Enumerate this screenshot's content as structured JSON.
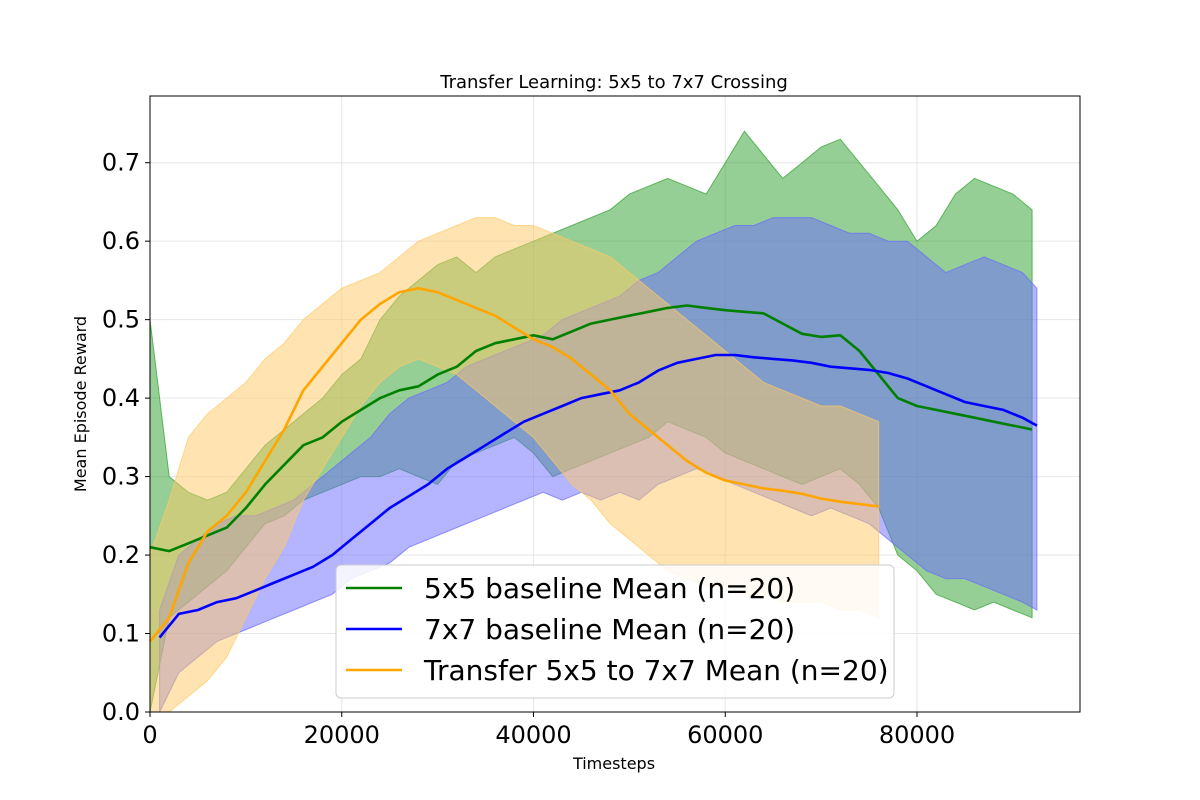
{
  "chart_data": {
    "type": "line",
    "title": "Transfer Learning: 5x5 to 7x7 Crossing",
    "xlabel": "Timesteps",
    "ylabel": "Mean Episode Reward",
    "xlim": [
      0,
      97000
    ],
    "ylim": [
      0,
      0.785
    ],
    "xticks": [
      0,
      20000,
      40000,
      60000,
      80000
    ],
    "yticks": [
      0.0,
      0.1,
      0.2,
      0.3,
      0.4,
      0.5,
      0.6,
      0.7
    ],
    "grid": true,
    "legend_position": "lower-center",
    "series": [
      {
        "name": "5x5 baseline Mean (n=20)",
        "color": "#008000",
        "fill": "#2ca02c",
        "x": [
          0,
          2000,
          4000,
          6000,
          8000,
          10000,
          12000,
          14000,
          16000,
          18000,
          20000,
          22000,
          24000,
          26000,
          28000,
          30000,
          32000,
          34000,
          36000,
          38000,
          40000,
          42000,
          44000,
          46000,
          48000,
          50000,
          52000,
          54000,
          56000,
          58000,
          60000,
          62000,
          64000,
          66000,
          68000,
          70000,
          72000,
          74000,
          76000,
          78000,
          80000,
          82000,
          84000,
          86000,
          88000,
          90000,
          92000
        ],
        "mean": [
          0.21,
          0.205,
          0.215,
          0.225,
          0.235,
          0.26,
          0.29,
          0.315,
          0.34,
          0.35,
          0.37,
          0.385,
          0.4,
          0.41,
          0.415,
          0.43,
          0.44,
          0.46,
          0.47,
          0.475,
          0.48,
          0.475,
          0.485,
          0.495,
          0.5,
          0.505,
          0.51,
          0.515,
          0.518,
          0.515,
          0.512,
          0.51,
          0.508,
          0.495,
          0.482,
          0.478,
          0.48,
          0.46,
          0.43,
          0.4,
          0.39,
          0.385,
          0.38,
          0.375,
          0.37,
          0.365,
          0.36
        ],
        "upper": [
          0.5,
          0.3,
          0.28,
          0.27,
          0.28,
          0.31,
          0.34,
          0.36,
          0.38,
          0.4,
          0.43,
          0.45,
          0.5,
          0.53,
          0.55,
          0.57,
          0.58,
          0.56,
          0.58,
          0.59,
          0.6,
          0.61,
          0.62,
          0.63,
          0.64,
          0.66,
          0.67,
          0.68,
          0.67,
          0.66,
          0.7,
          0.74,
          0.71,
          0.68,
          0.7,
          0.72,
          0.73,
          0.7,
          0.67,
          0.64,
          0.6,
          0.62,
          0.66,
          0.68,
          0.67,
          0.66,
          0.64
        ],
        "lower": [
          0.0,
          0.12,
          0.14,
          0.16,
          0.18,
          0.21,
          0.24,
          0.25,
          0.27,
          0.28,
          0.29,
          0.3,
          0.3,
          0.31,
          0.3,
          0.29,
          0.32,
          0.33,
          0.34,
          0.35,
          0.33,
          0.3,
          0.31,
          0.32,
          0.33,
          0.34,
          0.35,
          0.37,
          0.36,
          0.35,
          0.33,
          0.32,
          0.31,
          0.3,
          0.29,
          0.3,
          0.31,
          0.29,
          0.26,
          0.2,
          0.18,
          0.15,
          0.14,
          0.13,
          0.14,
          0.13,
          0.12
        ]
      },
      {
        "name": "7x7 baseline Mean (n=20)",
        "color": "#0000ff",
        "fill": "#6a6aff",
        "x": [
          1000,
          3000,
          5000,
          7000,
          9000,
          11000,
          13000,
          15000,
          17000,
          19000,
          21000,
          23000,
          25000,
          27000,
          29000,
          31000,
          33000,
          35000,
          37000,
          39000,
          41000,
          43000,
          45000,
          47000,
          49000,
          51000,
          53000,
          55000,
          57000,
          59000,
          61000,
          63000,
          65000,
          67000,
          69000,
          71000,
          73000,
          75000,
          77000,
          79000,
          81000,
          83000,
          85000,
          87000,
          89000,
          91000,
          92500
        ],
        "mean": [
          0.095,
          0.125,
          0.13,
          0.14,
          0.145,
          0.155,
          0.165,
          0.175,
          0.185,
          0.2,
          0.22,
          0.24,
          0.26,
          0.275,
          0.29,
          0.31,
          0.325,
          0.34,
          0.355,
          0.37,
          0.38,
          0.39,
          0.4,
          0.405,
          0.41,
          0.42,
          0.435,
          0.445,
          0.45,
          0.455,
          0.455,
          0.452,
          0.45,
          0.448,
          0.445,
          0.44,
          0.438,
          0.436,
          0.432,
          0.425,
          0.415,
          0.405,
          0.395,
          0.39,
          0.385,
          0.375,
          0.365
        ],
        "upper": [
          0.13,
          0.2,
          0.22,
          0.24,
          0.25,
          0.25,
          0.26,
          0.27,
          0.29,
          0.31,
          0.33,
          0.35,
          0.38,
          0.4,
          0.41,
          0.42,
          0.44,
          0.45,
          0.46,
          0.47,
          0.48,
          0.5,
          0.51,
          0.52,
          0.53,
          0.55,
          0.56,
          0.58,
          0.6,
          0.61,
          0.62,
          0.62,
          0.63,
          0.63,
          0.63,
          0.62,
          0.61,
          0.61,
          0.6,
          0.6,
          0.58,
          0.56,
          0.57,
          0.58,
          0.57,
          0.56,
          0.54
        ],
        "lower": [
          0.0,
          0.05,
          0.07,
          0.09,
          0.1,
          0.11,
          0.12,
          0.13,
          0.14,
          0.15,
          0.17,
          0.18,
          0.19,
          0.21,
          0.22,
          0.23,
          0.24,
          0.25,
          0.26,
          0.27,
          0.28,
          0.27,
          0.28,
          0.27,
          0.28,
          0.27,
          0.29,
          0.3,
          0.31,
          0.3,
          0.29,
          0.28,
          0.27,
          0.26,
          0.25,
          0.26,
          0.25,
          0.24,
          0.22,
          0.2,
          0.18,
          0.17,
          0.17,
          0.16,
          0.15,
          0.14,
          0.13
        ]
      },
      {
        "name": "Transfer 5x5 to 7x7 Mean (n=20)",
        "color": "#ffa500",
        "fill": "#ffc966",
        "x": [
          0,
          2000,
          4000,
          6000,
          8000,
          10000,
          12000,
          14000,
          16000,
          18000,
          20000,
          22000,
          24000,
          26000,
          28000,
          30000,
          32000,
          34000,
          36000,
          38000,
          40000,
          42000,
          44000,
          46000,
          48000,
          50000,
          52000,
          54000,
          56000,
          58000,
          60000,
          62000,
          64000,
          66000,
          68000,
          70000,
          72000,
          74000,
          76000
        ],
        "mean": [
          0.09,
          0.12,
          0.19,
          0.23,
          0.25,
          0.28,
          0.32,
          0.36,
          0.41,
          0.44,
          0.47,
          0.5,
          0.52,
          0.535,
          0.54,
          0.535,
          0.525,
          0.515,
          0.505,
          0.49,
          0.475,
          0.465,
          0.45,
          0.43,
          0.41,
          0.38,
          0.36,
          0.34,
          0.32,
          0.305,
          0.295,
          0.29,
          0.285,
          0.282,
          0.278,
          0.272,
          0.268,
          0.265,
          0.262
        ],
        "upper": [
          0.2,
          0.27,
          0.35,
          0.38,
          0.4,
          0.42,
          0.45,
          0.47,
          0.5,
          0.52,
          0.54,
          0.55,
          0.56,
          0.58,
          0.6,
          0.61,
          0.62,
          0.63,
          0.63,
          0.62,
          0.62,
          0.61,
          0.6,
          0.59,
          0.58,
          0.56,
          0.54,
          0.52,
          0.5,
          0.48,
          0.46,
          0.44,
          0.42,
          0.41,
          0.4,
          0.39,
          0.39,
          0.38,
          0.37
        ],
        "lower": [
          0.0,
          0.0,
          0.02,
          0.04,
          0.07,
          0.12,
          0.17,
          0.21,
          0.27,
          0.31,
          0.35,
          0.39,
          0.42,
          0.44,
          0.45,
          0.44,
          0.43,
          0.41,
          0.39,
          0.37,
          0.35,
          0.32,
          0.29,
          0.27,
          0.24,
          0.22,
          0.2,
          0.18,
          0.17,
          0.16,
          0.16,
          0.15,
          0.15,
          0.14,
          0.14,
          0.14,
          0.13,
          0.13,
          0.12
        ]
      }
    ]
  }
}
